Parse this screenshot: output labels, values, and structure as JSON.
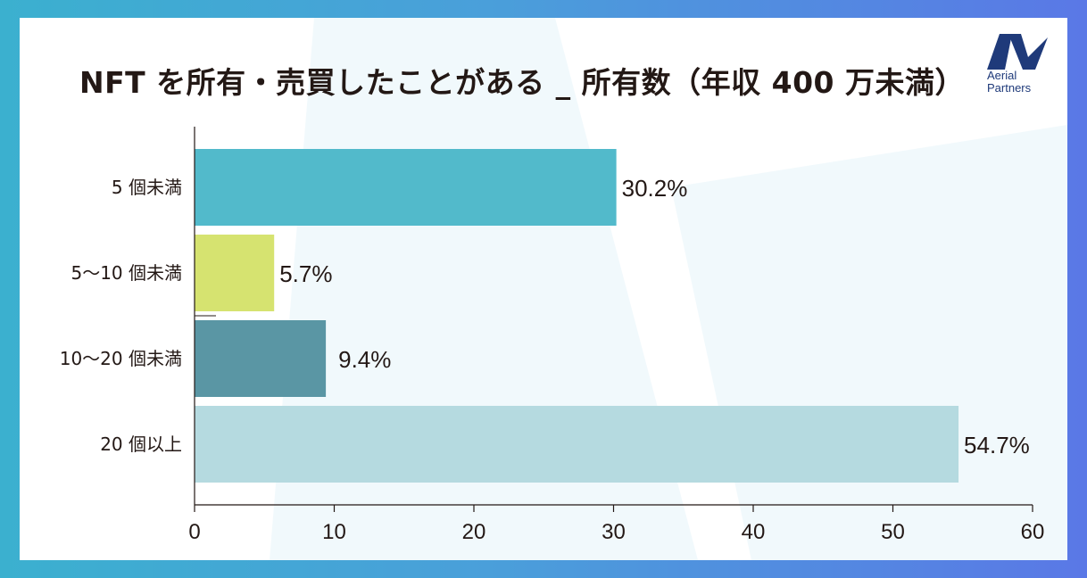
{
  "title": "NFT を所有・売買したことがある _ 所有数（年収 400 万未満）",
  "logo": {
    "line1": "Aerial",
    "line2": "Partners"
  },
  "colors": {
    "bar_colors": [
      "#52bacb",
      "#d6e370",
      "#5a96a4",
      "#b5dae0"
    ],
    "axis": "#231815",
    "frame": "#4aa0d8"
  },
  "chart_data": {
    "type": "bar",
    "orientation": "horizontal",
    "categories": [
      "5 個未満",
      "5〜10 個未満",
      "10〜20 個未満",
      "20 個以上"
    ],
    "values": [
      30.2,
      5.7,
      9.4,
      54.7
    ],
    "value_labels": [
      "30.2%",
      "5.7%",
      "9.4%",
      "54.7%"
    ],
    "xlim": [
      0,
      60
    ],
    "xticks": [
      "0",
      "10",
      "20",
      "30",
      "40",
      "50",
      "60"
    ],
    "xlabel": "",
    "ylabel": "",
    "grid": false,
    "legend": "none"
  }
}
